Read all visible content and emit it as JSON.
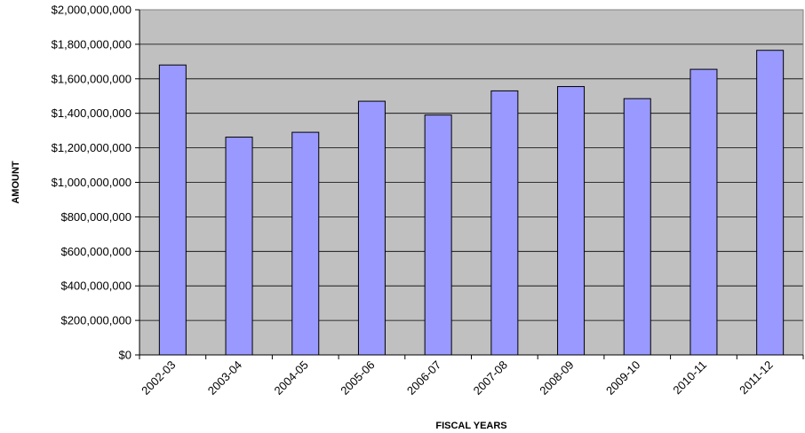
{
  "chart_data": {
    "type": "bar",
    "title": "",
    "xlabel": "FISCAL YEARS",
    "ylabel": "AMOUNT",
    "categories": [
      "2002-03",
      "2003-04",
      "2004-05",
      "2005-06",
      "2006-07",
      "2007-08",
      "2008-09",
      "2009-10",
      "2010-11",
      "2011-12"
    ],
    "values": [
      1680000000,
      1262000000,
      1290000000,
      1470000000,
      1390000000,
      1530000000,
      1555000000,
      1485000000,
      1655000000,
      1765000000
    ],
    "ylim": [
      0,
      2000000000
    ],
    "yticks": [
      0,
      200000000,
      400000000,
      600000000,
      800000000,
      1000000000,
      1200000000,
      1400000000,
      1600000000,
      1800000000,
      2000000000
    ],
    "ytick_labels": [
      "$0",
      "$200,000,000",
      "$400,000,000",
      "$600,000,000",
      "$800,000,000",
      "$1,000,000,000",
      "$1,200,000,000",
      "$1,400,000,000",
      "$1,600,000,000",
      "$1,800,000,000",
      "$2,000,000,000"
    ],
    "grid": true,
    "legend": "none",
    "colors": {
      "plot_background": "#c0c0c0",
      "bar_fill": "#9999ff",
      "bar_stroke": "#000000",
      "gridline": "#000000",
      "axis": "#000000"
    }
  }
}
